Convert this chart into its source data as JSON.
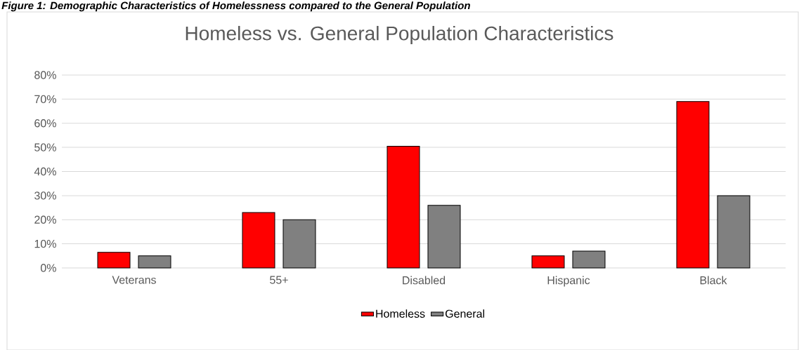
{
  "chart_data": {
    "type": "bar",
    "title": "Homeless vs. General Population Characteristics",
    "annotations": [
      "Figure 1: Demographic Characteristics of Homelessness compared to the General Population"
    ],
    "categories": [
      "Veterans",
      "55+",
      "Disabled",
      "Hispanic",
      "Black"
    ],
    "series": [
      {
        "name": "Homeless",
        "color": "#ff0000",
        "values": [
          6.5,
          23,
          50.5,
          5,
          69
        ]
      },
      {
        "name": "General",
        "color": "#808080",
        "values": [
          5,
          20,
          26,
          7,
          30
        ]
      }
    ],
    "ylim": [
      0,
      80
    ],
    "yticks": [
      {
        "value": 0,
        "label": "0%"
      },
      {
        "value": 10,
        "label": "10%"
      },
      {
        "value": 20,
        "label": "20%"
      },
      {
        "value": 30,
        "label": "30%"
      },
      {
        "value": 40,
        "label": "40%"
      },
      {
        "value": 50,
        "label": "50%"
      },
      {
        "value": 60,
        "label": "60%"
      },
      {
        "value": 70,
        "label": "70%"
      },
      {
        "value": 80,
        "label": "80%"
      }
    ],
    "grid": "y",
    "legend": "bottom"
  }
}
